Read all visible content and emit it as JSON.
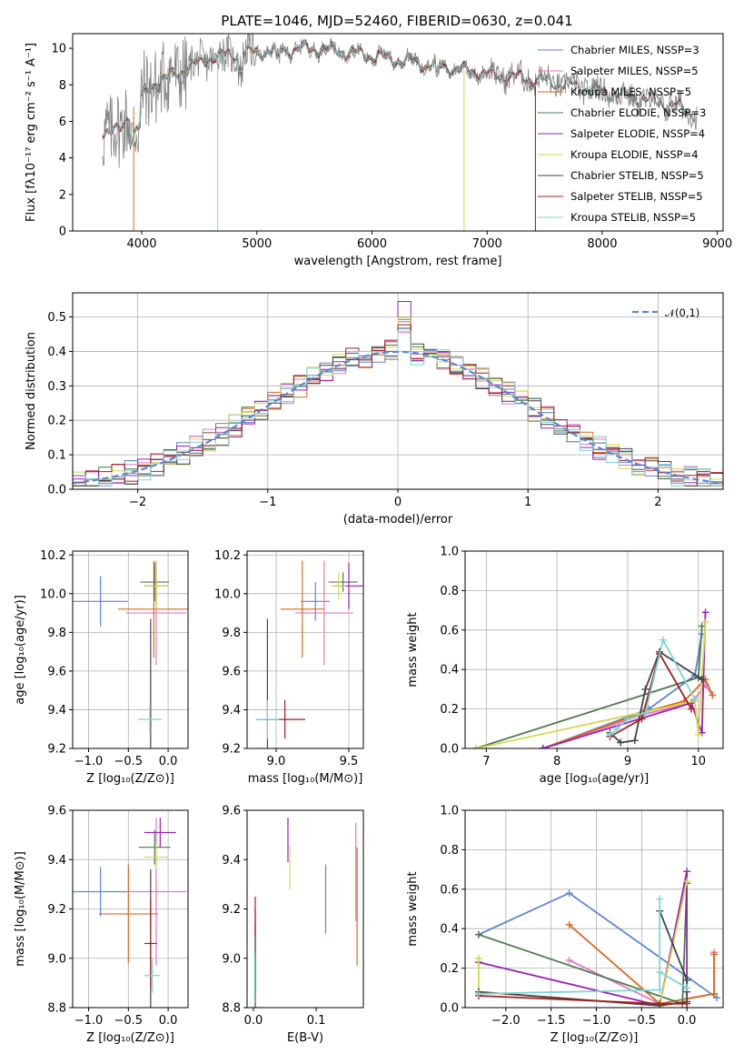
{
  "page_title": "PLATE=1046, MJD=52460, FIBERID=0630, z=0.041",
  "colors": {
    "Chabrier MILES": "#5b86d6",
    "Salpeter MILES": "#e377c2",
    "Kroupa MILES": "#d86a1c",
    "Chabrier ELODIE": "#4c7a4c",
    "Salpeter ELODIE": "#9a1fb5",
    "Kroupa ELODIE": "#d4d84a",
    "Chabrier STELIB": "#444444",
    "Salpeter STELIB": "#a51c1c",
    "Kroupa STELIB": "#7fd4d4",
    "data": "#808080",
    "normal": "#5b86d6"
  },
  "chart_data": [
    {
      "id": "spectrum",
      "type": "line",
      "title": "PLATE=1046, MJD=52460, FIBERID=0630, z=0.041",
      "xlabel": "wavelength [Angstrom, rest frame]",
      "ylabel": "Flux [fλ10⁻¹⁷ erg cm⁻² s⁻¹ A⁻¹]",
      "xlim": [
        3400,
        9050
      ],
      "ylim": [
        0,
        10.8
      ],
      "xticks": [
        4000,
        5000,
        6000,
        7000,
        8000,
        9000
      ],
      "yticks": [
        0,
        2,
        4,
        6,
        8,
        10
      ],
      "grid": false,
      "legend_position": "top-right",
      "data_range": [
        3660,
        8820
      ],
      "continuum": [
        [
          3660,
          5.5
        ],
        [
          3800,
          5.4
        ],
        [
          3950,
          7.0
        ],
        [
          4100,
          8.0
        ],
        [
          4300,
          8.6
        ],
        [
          4600,
          9.5
        ],
        [
          5000,
          9.8
        ],
        [
          5500,
          10.0
        ],
        [
          5900,
          9.7
        ],
        [
          6200,
          9.4
        ],
        [
          6600,
          9.0
        ],
        [
          7000,
          8.6
        ],
        [
          7400,
          8.3
        ],
        [
          7800,
          7.9
        ],
        [
          8200,
          7.4
        ],
        [
          8600,
          6.9
        ],
        [
          8820,
          6.4
        ]
      ],
      "model_cutoffs": {
        "Chabrier MILES": 7420,
        "Salpeter MILES": 7420,
        "Kroupa MILES": 7420,
        "Chabrier ELODIE": 6800,
        "Salpeter ELODIE": 6800,
        "Kroupa ELODIE": 6800,
        "Chabrier STELIB": 8820,
        "Salpeter STELIB": 8820,
        "Kroupa STELIB": 8820
      },
      "series": [
        {
          "name": "Chabrier MILES, NSSP=3",
          "key": "Chabrier MILES"
        },
        {
          "name": "Salpeter MILES, NSSP=5",
          "key": "Salpeter MILES"
        },
        {
          "name": "Kroupa MILES, NSSP=5",
          "key": "Kroupa MILES"
        },
        {
          "name": "Chabrier ELODIE, NSSP=3",
          "key": "Chabrier ELODIE"
        },
        {
          "name": "Salpeter ELODIE, NSSP=4",
          "key": "Salpeter ELODIE"
        },
        {
          "name": "Kroupa ELODIE, NSSP=4",
          "key": "Kroupa ELODIE"
        },
        {
          "name": "Chabrier STELIB, NSSP=5",
          "key": "Chabrier STELIB"
        },
        {
          "name": "Salpeter STELIB, NSSP=5",
          "key": "Salpeter STELIB"
        },
        {
          "name": "Kroupa STELIB, NSSP=5",
          "key": "Kroupa STELIB"
        }
      ]
    },
    {
      "id": "residuals",
      "type": "histogram",
      "xlabel": "(data-model)/error",
      "ylabel": "Normed distribution",
      "xlim": [
        -2.5,
        2.5
      ],
      "ylim": [
        0,
        0.57
      ],
      "xticks": [
        -2,
        -1,
        0,
        1,
        2
      ],
      "yticks": [
        0.0,
        0.1,
        0.2,
        0.3,
        0.4,
        0.5
      ],
      "grid": true,
      "legend": "𝒩(0,1)",
      "legend_position": "top-right",
      "bin_width": 0.1
    },
    {
      "id": "age_vs_Z",
      "type": "errorbar",
      "xlabel": "Z [log₁₀(Z/Z⊙)]",
      "ylabel": "age  [log₁₀(age/yr)]",
      "xlim": [
        -1.2,
        0.25
      ],
      "ylim": [
        9.2,
        10.22
      ],
      "xticks": [
        -1.0,
        -0.5,
        0.0
      ],
      "yticks": [
        9.2,
        9.4,
        9.6,
        9.8,
        10.0,
        10.2
      ],
      "grid": true,
      "points": [
        {
          "key": "Chabrier MILES",
          "x": -0.85,
          "y": 9.96,
          "xerr": 0.35,
          "yerr": 0.13
        },
        {
          "key": "Salpeter MILES",
          "x": -0.15,
          "y": 9.9,
          "xerr": 0.38,
          "yerr": 0.27
        },
        {
          "key": "Kroupa MILES",
          "x": -0.18,
          "y": 9.92,
          "xerr": 0.45,
          "yerr": 0.25
        },
        {
          "key": "Chabrier ELODIE",
          "x": -0.17,
          "y": 10.06,
          "xerr": 0.18,
          "yerr": 0.1
        },
        {
          "key": "Salpeter ELODIE",
          "x": -0.15,
          "y": 10.04,
          "xerr": 0.15,
          "yerr": 0.1
        },
        {
          "key": "Kroupa ELODIE",
          "x": -0.15,
          "y": 10.04,
          "xerr": 0.15,
          "yerr": 0.12
        },
        {
          "key": "Chabrier STELIB",
          "x": -0.22,
          "y": 9.35,
          "xerr": 0.02,
          "yerr": 0.52
        },
        {
          "key": "Salpeter STELIB",
          "x": -0.22,
          "y": 9.35,
          "xerr": 0.01,
          "yerr": 0.05
        },
        {
          "key": "Kroupa STELIB",
          "x": -0.23,
          "y": 9.35,
          "xerr": 0.15,
          "yerr": 0.07
        }
      ]
    },
    {
      "id": "age_vs_mass",
      "type": "errorbar",
      "xlabel": "mass [log₁₀(M/M⊙)]",
      "ylabel": "",
      "xlim": [
        8.8,
        9.6
      ],
      "ylim": [
        9.2,
        10.22
      ],
      "xticks": [
        9.0,
        9.5
      ],
      "yticks": [
        9.2,
        9.4,
        9.6,
        9.8,
        10.0,
        10.2
      ],
      "grid": true,
      "points": [
        {
          "key": "Chabrier MILES",
          "x": 9.27,
          "y": 9.96,
          "xerr": 0.1,
          "yerr": 0.1
        },
        {
          "key": "Salpeter MILES",
          "x": 9.33,
          "y": 9.9,
          "xerr": 0.2,
          "yerr": 0.27
        },
        {
          "key": "Kroupa MILES",
          "x": 9.18,
          "y": 9.92,
          "xerr": 0.15,
          "yerr": 0.25
        },
        {
          "key": "Chabrier ELODIE",
          "x": 9.46,
          "y": 10.06,
          "xerr": 0.1,
          "yerr": 0.05
        },
        {
          "key": "Salpeter ELODIE",
          "x": 9.5,
          "y": 10.04,
          "xerr": 0.1,
          "yerr": 0.12
        },
        {
          "key": "Kroupa ELODIE",
          "x": 9.43,
          "y": 10.04,
          "xerr": 0.05,
          "yerr": 0.07
        },
        {
          "key": "Chabrier STELIB",
          "x": 8.94,
          "y": 9.35,
          "xerr": 0.08,
          "yerr": 0.52
        },
        {
          "key": "Salpeter STELIB",
          "x": 9.06,
          "y": 9.35,
          "xerr": 0.14,
          "yerr": 0.1
        },
        {
          "key": "Kroupa STELIB",
          "x": 8.94,
          "y": 9.35,
          "xerr": 0.08,
          "yerr": 0.1
        }
      ]
    },
    {
      "id": "mass_weight_vs_age",
      "type": "line",
      "xlabel": "age  [log₁₀(age/yr)]",
      "ylabel": "mass weight",
      "xlim": [
        6.7,
        10.35
      ],
      "ylim": [
        0,
        1.0
      ],
      "xticks": [
        7,
        8,
        9,
        10
      ],
      "yticks": [
        0.0,
        0.2,
        0.4,
        0.6,
        0.8,
        1.0
      ],
      "grid": true,
      "series": [
        {
          "key": "Chabrier MILES",
          "points": [
            [
              7.8,
              0.0
            ],
            [
              9.3,
              0.2
            ],
            [
              9.95,
              0.37
            ],
            [
              10.05,
              0.58
            ]
          ]
        },
        {
          "key": "Salpeter MILES",
          "points": [
            [
              7.8,
              0.0
            ],
            [
              9.2,
              0.17
            ],
            [
              9.9,
              0.23
            ],
            [
              10.1,
              0.32
            ],
            [
              10.2,
              0.27
            ]
          ]
        },
        {
          "key": "Kroupa MILES",
          "points": [
            [
              7.8,
              0.0
            ],
            [
              9.2,
              0.18
            ],
            [
              9.8,
              0.24
            ],
            [
              10.1,
              0.35
            ],
            [
              10.2,
              0.27
            ]
          ]
        },
        {
          "key": "Chabrier ELODIE",
          "points": [
            [
              6.85,
              0.0
            ],
            [
              10.0,
              0.36
            ],
            [
              10.05,
              0.62
            ]
          ]
        },
        {
          "key": "Salpeter ELODIE",
          "points": [
            [
              7.8,
              0.0
            ],
            [
              9.9,
              0.23
            ],
            [
              10.05,
              0.08
            ],
            [
              10.1,
              0.69
            ]
          ]
        },
        {
          "key": "Kroupa ELODIE",
          "points": [
            [
              6.85,
              0.0
            ],
            [
              9.95,
              0.24
            ],
            [
              10.0,
              0.07
            ],
            [
              10.1,
              0.64
            ]
          ]
        },
        {
          "key": "Chabrier STELIB",
          "points": [
            [
              8.75,
              0.08
            ],
            [
              8.9,
              0.03
            ],
            [
              9.1,
              0.04
            ],
            [
              9.25,
              0.3
            ],
            [
              9.45,
              0.49
            ],
            [
              10.05,
              0.35
            ]
          ]
        },
        {
          "key": "Salpeter STELIB",
          "points": [
            [
              8.75,
              0.06
            ],
            [
              9.2,
              0.15
            ],
            [
              9.45,
              0.48
            ],
            [
              9.9,
              0.2
            ]
          ]
        },
        {
          "key": "Kroupa STELIB",
          "points": [
            [
              8.75,
              0.07
            ],
            [
              8.85,
              0.1
            ],
            [
              9.0,
              0.15
            ],
            [
              9.25,
              0.18
            ],
            [
              9.5,
              0.55
            ],
            [
              9.95,
              0.25
            ]
          ]
        }
      ]
    },
    {
      "id": "mass_vs_Z",
      "type": "errorbar",
      "xlabel": "Z [log₁₀(Z/Z⊙)]",
      "ylabel": "mass [log₁₀(M/M⊙)]",
      "xlim": [
        -1.2,
        0.25
      ],
      "ylim": [
        8.8,
        9.6
      ],
      "xticks": [
        -1.0,
        -0.5,
        0.0
      ],
      "yticks": [
        8.8,
        9.0,
        9.2,
        9.4,
        9.6
      ],
      "grid": true,
      "points": [
        {
          "key": "Chabrier MILES",
          "x": -0.85,
          "y": 9.27,
          "xerr": 0.35,
          "yerr": 0.1
        },
        {
          "key": "Salpeter MILES",
          "x": -0.15,
          "y": 9.27,
          "xerr": 0.38,
          "yerr": 0.3
        },
        {
          "key": "Kroupa MILES",
          "x": -0.5,
          "y": 9.18,
          "xerr": 0.37,
          "yerr": 0.2
        },
        {
          "key": "Chabrier ELODIE",
          "x": -0.17,
          "y": 9.45,
          "xerr": 0.2,
          "yerr": 0.07
        },
        {
          "key": "Salpeter ELODIE",
          "x": -0.1,
          "y": 9.51,
          "xerr": 0.2,
          "yerr": 0.06
        },
        {
          "key": "Kroupa ELODIE",
          "x": -0.15,
          "y": 9.41,
          "xerr": 0.15,
          "yerr": 0.05
        },
        {
          "key": "Chabrier STELIB",
          "x": -0.22,
          "y": 9.06,
          "xerr": 0.02,
          "yerr": 0.3
        },
        {
          "key": "Salpeter STELIB",
          "x": -0.22,
          "y": 9.06,
          "xerr": 0.08,
          "yerr": 0.18
        },
        {
          "key": "Kroupa STELIB",
          "x": -0.2,
          "y": 8.93,
          "xerr": 0.1,
          "yerr": 0.07
        }
      ]
    },
    {
      "id": "mass_vs_EBV",
      "type": "errorbar",
      "xlabel": "E(B-V)",
      "ylabel": "",
      "xlim": [
        -0.01,
        0.175
      ],
      "ylim": [
        8.8,
        9.6
      ],
      "xticks": [
        0.0,
        0.1
      ],
      "yticks": [
        8.8,
        9.0,
        9.2,
        9.4,
        9.6
      ],
      "grid": false,
      "points": [
        {
          "key": "Chabrier MILES",
          "x": 0.115,
          "y": 9.24,
          "xerr": 0,
          "yerr": 0.14
        },
        {
          "key": "Salpeter MILES",
          "x": 0.163,
          "y": 9.35,
          "xerr": 0,
          "yerr": 0.2
        },
        {
          "key": "Kroupa MILES",
          "x": 0.165,
          "y": 9.21,
          "xerr": 0,
          "yerr": 0.24
        },
        {
          "key": "Chabrier ELODIE",
          "x": 0.003,
          "y": 9.0,
          "xerr": 0,
          "yerr": 0.14
        },
        {
          "key": "Salpeter ELODIE",
          "x": 0.055,
          "y": 9.48,
          "xerr": 0,
          "yerr": 0.09
        },
        {
          "key": "Kroupa ELODIE",
          "x": 0.058,
          "y": 9.37,
          "xerr": 0,
          "yerr": 0.09
        },
        {
          "key": "Chabrier STELIB",
          "x": 0.003,
          "y": 9.0,
          "xerr": 0,
          "yerr": 0.2
        },
        {
          "key": "Salpeter STELIB",
          "x": 0.003,
          "y": 9.17,
          "xerr": 0,
          "yerr": 0.08
        },
        {
          "key": "Kroupa STELIB",
          "x": 0.002,
          "y": 8.92,
          "xerr": 0,
          "yerr": 0.1
        }
      ]
    },
    {
      "id": "mass_weight_vs_Z",
      "type": "line",
      "xlabel": "Z [log₁₀(Z/Z⊙)]",
      "ylabel": "mass weight",
      "xlim": [
        -2.45,
        0.4
      ],
      "ylim": [
        0,
        1.0
      ],
      "xticks": [
        -2.0,
        -1.5,
        -1.0,
        -0.5,
        0.0
      ],
      "yticks": [
        0.0,
        0.2,
        0.4,
        0.6,
        0.8,
        1.0
      ],
      "grid": true,
      "series": [
        {
          "key": "Chabrier MILES",
          "points": [
            [
              -2.3,
              0.37
            ],
            [
              -1.3,
              0.58
            ],
            [
              0.33,
              0.05
            ]
          ]
        },
        {
          "key": "Salpeter MILES",
          "points": [
            [
              -1.3,
              0.24
            ],
            [
              -0.3,
              0.02
            ],
            [
              0.3,
              0.07
            ],
            [
              0.3,
              0.28
            ]
          ]
        },
        {
          "key": "Kroupa MILES",
          "points": [
            [
              -1.3,
              0.42
            ],
            [
              -0.3,
              0.02
            ],
            [
              0.3,
              0.07
            ],
            [
              0.3,
              0.27
            ]
          ]
        },
        {
          "key": "Chabrier ELODIE",
          "points": [
            [
              -2.3,
              0.37
            ],
            [
              -0.05,
              0.02
            ],
            [
              0.0,
              0.63
            ]
          ]
        },
        {
          "key": "Salpeter ELODIE",
          "points": [
            [
              -2.3,
              0.23
            ],
            [
              -0.3,
              0.01
            ],
            [
              0.0,
              0.69
            ],
            [
              0.0,
              0.08
            ]
          ]
        },
        {
          "key": "Kroupa ELODIE",
          "points": [
            [
              -2.3,
              0.25
            ],
            [
              -2.3,
              0.08
            ],
            [
              -0.3,
              0.01
            ],
            [
              0.0,
              0.64
            ]
          ]
        },
        {
          "key": "Chabrier STELIB",
          "points": [
            [
              -2.3,
              0.08
            ],
            [
              -0.3,
              0.01
            ],
            [
              0.0,
              0.03
            ],
            [
              0.0,
              0.14
            ],
            [
              -0.3,
              0.49
            ]
          ]
        },
        {
          "key": "Salpeter STELIB",
          "points": [
            [
              -2.3,
              0.06
            ],
            [
              -0.3,
              0.02
            ],
            [
              0.0,
              0.02
            ]
          ]
        },
        {
          "key": "Kroupa STELIB",
          "points": [
            [
              -2.3,
              0.07
            ],
            [
              -0.3,
              0.09
            ],
            [
              -0.3,
              0.55
            ],
            [
              -0.3,
              0.18
            ],
            [
              0.0,
              0.1
            ]
          ]
        }
      ]
    }
  ]
}
